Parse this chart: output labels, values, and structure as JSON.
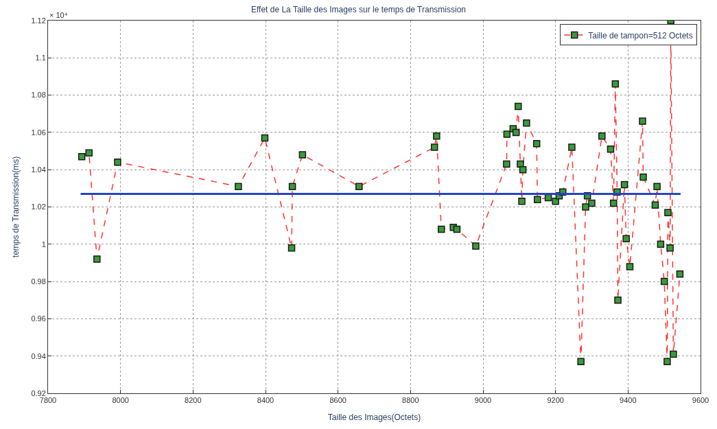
{
  "chart_data": {
    "type": "line",
    "title": "Effet de La Taille des Images sur le temps de Transmission",
    "xlabel": "Taille des Images(Octets)",
    "ylabel": "temps de Transmission(ms)",
    "annotations": [
      "× 10⁴"
    ],
    "series": [
      {
        "name": "Taille de tampon=512 Octets",
        "color": "#ff3333",
        "marker": "square",
        "line_style": "dashed",
        "x": [
          7893,
          7913,
          7935,
          7992,
          8325,
          8398,
          8472,
          8474,
          8502,
          8658,
          8866,
          8872,
          8885,
          8918,
          8928,
          8980,
          9065,
          9066,
          9083,
          9091,
          9097,
          9103,
          9107,
          9110,
          9120,
          9148,
          9150,
          9180,
          9200,
          9210,
          9220,
          9245,
          9270,
          9283,
          9288,
          9300,
          9328,
          9352,
          9360,
          9365,
          9370,
          9372,
          9390,
          9395,
          9405,
          9440,
          9442,
          9475,
          9480,
          9490,
          9500,
          9508,
          9510,
          9516,
          9518,
          9525,
          9543
        ],
        "values": [
          1.047,
          1.049,
          0.992,
          1.044,
          1.031,
          1.057,
          0.998,
          1.031,
          1.048,
          1.031,
          1.052,
          1.058,
          1.008,
          1.009,
          1.008,
          0.999,
          1.043,
          1.059,
          1.062,
          1.06,
          1.074,
          1.043,
          1.023,
          1.04,
          1.065,
          1.054,
          1.024,
          1.025,
          1.023,
          1.026,
          1.028,
          1.052,
          0.937,
          1.02,
          1.026,
          1.022,
          1.058,
          1.051,
          1.022,
          1.086,
          1.028,
          0.97,
          1.032,
          1.003,
          0.988,
          1.066,
          1.036,
          1.021,
          1.031,
          1.0,
          0.98,
          0.937,
          1.017,
          0.998,
          1.12,
          0.941,
          0.984
        ]
      },
      {
        "color": "#2244cc",
        "marker": "none",
        "line_style": "solid",
        "x": [
          7890,
          9545
        ],
        "values": [
          1.027,
          1.027
        ]
      }
    ],
    "xlim": [
      7800,
      9600
    ],
    "xticks": [
      7800,
      8000,
      8200,
      8400,
      8600,
      8800,
      9000,
      9200,
      9400,
      9600
    ],
    "ylim": [
      0.92,
      1.12
    ],
    "yticks": [
      0.92,
      0.94,
      0.96,
      0.98,
      1,
      1.02,
      1.04,
      1.06,
      1.08,
      1.1,
      1.12
    ],
    "grid": true,
    "legend": "top right"
  }
}
